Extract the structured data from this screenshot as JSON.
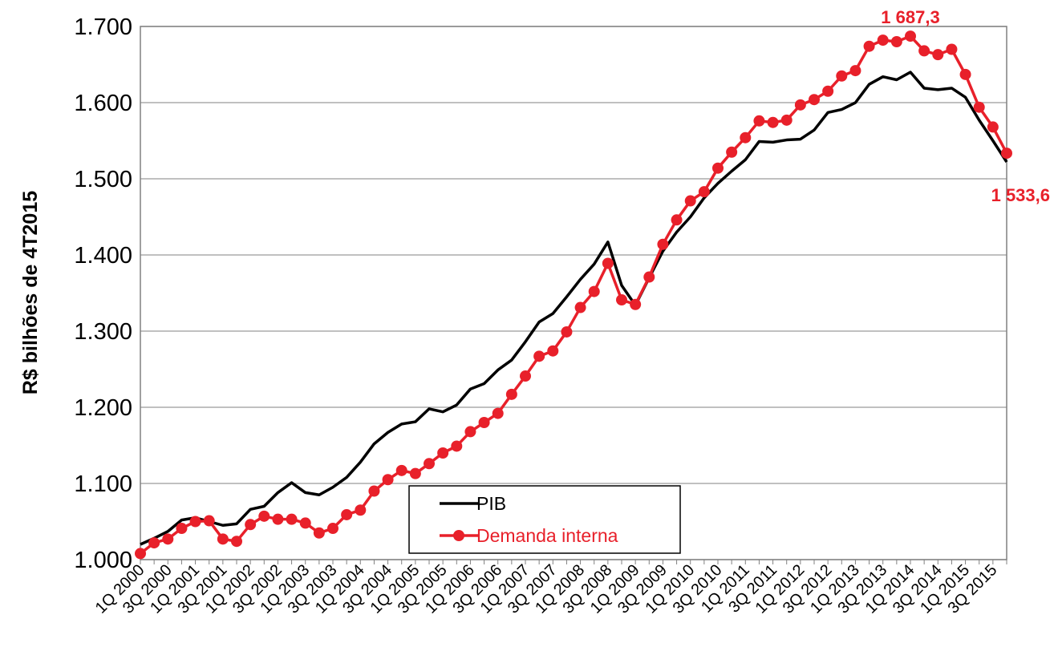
{
  "chart_data": {
    "type": "line",
    "ylabel": "R$ bilhões de 4T2015",
    "categories": [
      "1Q 2000",
      null,
      "3Q 2000",
      null,
      "1Q 2001",
      null,
      "3Q 2001",
      null,
      "1Q 2002",
      null,
      "3Q 2002",
      null,
      "1Q 2003",
      null,
      "3Q 2003",
      null,
      "1Q 2004",
      null,
      "3Q 2004",
      null,
      "1Q 2005",
      null,
      "3Q 2005",
      null,
      "1Q 2006",
      null,
      "3Q 2006",
      null,
      "1Q 2007",
      null,
      "3Q 2007",
      null,
      "1Q 2008",
      null,
      "3Q 2008",
      null,
      "1Q 2009",
      null,
      "3Q 2009",
      null,
      "1Q 2010",
      null,
      "3Q 2010",
      null,
      "1Q 2011",
      null,
      "3Q 2011",
      null,
      "1Q 2012",
      null,
      "3Q 2012",
      null,
      "1Q 2013",
      null,
      "3Q 2013",
      null,
      "1Q 2014",
      null,
      "3Q 2014",
      null,
      "1Q 2015",
      null,
      "3Q 2015",
      null
    ],
    "series": [
      {
        "name": "PIB",
        "color": "#000000",
        "marker": false,
        "values": [
          1020,
          1028,
          1037,
          1052,
          1055,
          1050,
          1045,
          1047,
          1066,
          1070,
          1088,
          1101,
          1088,
          1085,
          1095,
          1108,
          1128,
          1152,
          1167,
          1178,
          1181,
          1198,
          1194,
          1203,
          1224,
          1231,
          1249,
          1262,
          1286,
          1312,
          1323,
          1345,
          1368,
          1388,
          1417,
          1360,
          1334,
          1370,
          1405,
          1430,
          1450,
          1475,
          1494,
          1510,
          1525,
          1549,
          1548,
          1551,
          1552,
          1564,
          1587,
          1591,
          1600,
          1624,
          1634,
          1630,
          1640,
          1619,
          1617,
          1619,
          1607,
          1577,
          1550,
          1522
        ]
      },
      {
        "name": "Demanda interna",
        "color": "#e8202a",
        "marker": true,
        "values": [
          1008,
          1022,
          1027,
          1041,
          1050,
          1051,
          1027,
          1024,
          1046,
          1057,
          1053,
          1053,
          1048,
          1035,
          1041,
          1059,
          1065,
          1090,
          1105,
          1117,
          1113,
          1126,
          1140,
          1149,
          1168,
          1180,
          1192,
          1217,
          1241,
          1267,
          1274,
          1299,
          1331,
          1352,
          1389,
          1341,
          1335,
          1371,
          1414,
          1446,
          1471,
          1483,
          1514,
          1535,
          1554,
          1576,
          1574,
          1577,
          1597,
          1604,
          1615,
          1635,
          1642,
          1674,
          1682,
          1680,
          1687.3,
          1668,
          1663,
          1670,
          1637,
          1594,
          1568,
          1533.6
        ],
        "value_labels": [
          null,
          null,
          null,
          null,
          null,
          null,
          null,
          null,
          null,
          null,
          null,
          null,
          null,
          null,
          null,
          null,
          null,
          null,
          null,
          null,
          null,
          null,
          null,
          null,
          null,
          null,
          null,
          null,
          null,
          null,
          null,
          null,
          null,
          null,
          null,
          null,
          null,
          null,
          null,
          null,
          null,
          null,
          null,
          null,
          null,
          null,
          null,
          null,
          null,
          null,
          null,
          null,
          null,
          null,
          null,
          null,
          "1 687,3",
          null,
          null,
          null,
          null,
          null,
          null,
          "1 533,6"
        ]
      }
    ],
    "ylim": [
      1000,
      1700
    ],
    "yticks": [
      {
        "value": 1000,
        "label": "1.000"
      },
      {
        "value": 1100,
        "label": "1.100"
      },
      {
        "value": 1200,
        "label": "1.200"
      },
      {
        "value": 1300,
        "label": "1.300"
      },
      {
        "value": 1400,
        "label": "1.400"
      },
      {
        "value": 1500,
        "label": "1.500"
      },
      {
        "value": 1600,
        "label": "1.600"
      },
      {
        "value": 1700,
        "label": "1.700"
      }
    ],
    "grid": true
  }
}
